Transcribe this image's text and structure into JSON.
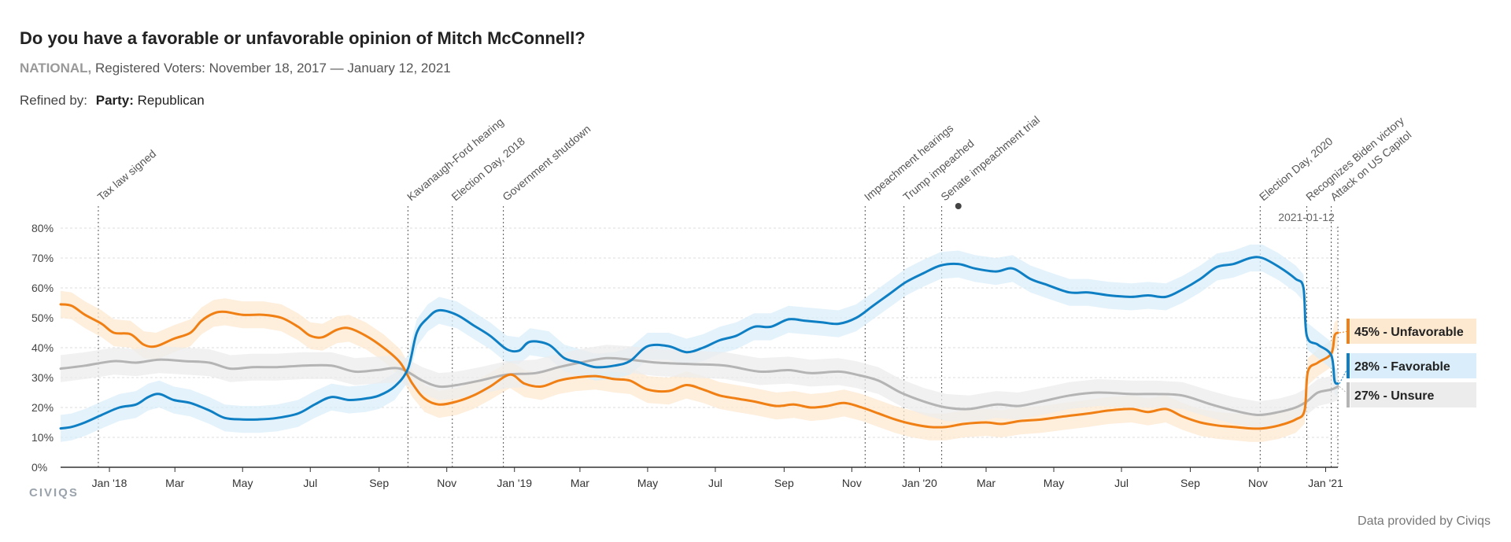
{
  "header": {
    "title": "Do you have a favorable or unfavorable opinion of Mitch McConnell?",
    "scope": "NATIONAL,",
    "subtitle": "Registered Voters: November 18, 2017 — January 12, 2021",
    "refined_label": "Refined by:",
    "refined_key": "Party:",
    "refined_value": "Republican"
  },
  "footer": {
    "credit": "Data provided by Civiqs",
    "logo": "CIVIQS"
  },
  "chart_data": {
    "type": "line",
    "ylim": [
      0,
      80
    ],
    "yticks": [
      0,
      10,
      20,
      30,
      40,
      50,
      60,
      70,
      80
    ],
    "ytick_labels": [
      "0%",
      "10%",
      "20%",
      "30%",
      "40%",
      "50%",
      "60%",
      "70%",
      "80%"
    ],
    "x_range": [
      "2017-11-18",
      "2021-01-12"
    ],
    "x_ticks": [
      {
        "date": "2018-01-01",
        "label": "Jan '18"
      },
      {
        "date": "2018-03-01",
        "label": "Mar"
      },
      {
        "date": "2018-05-01",
        "label": "May"
      },
      {
        "date": "2018-07-01",
        "label": "Jul"
      },
      {
        "date": "2018-09-01",
        "label": "Sep"
      },
      {
        "date": "2018-11-01",
        "label": "Nov"
      },
      {
        "date": "2019-01-01",
        "label": "Jan '19"
      },
      {
        "date": "2019-03-01",
        "label": "Mar"
      },
      {
        "date": "2019-05-01",
        "label": "May"
      },
      {
        "date": "2019-07-01",
        "label": "Jul"
      },
      {
        "date": "2019-09-01",
        "label": "Sep"
      },
      {
        "date": "2019-11-01",
        "label": "Nov"
      },
      {
        "date": "2020-01-01",
        "label": "Jan '20"
      },
      {
        "date": "2020-03-01",
        "label": "Mar"
      },
      {
        "date": "2020-05-01",
        "label": "May"
      },
      {
        "date": "2020-07-01",
        "label": "Jul"
      },
      {
        "date": "2020-09-01",
        "label": "Sep"
      },
      {
        "date": "2020-11-01",
        "label": "Nov"
      },
      {
        "date": "2021-01-01",
        "label": "Jan '21"
      }
    ],
    "events": [
      {
        "date": "2017-12-22",
        "label": "Tax law signed"
      },
      {
        "date": "2018-09-27",
        "label": "Kavanaugh-Ford hearing"
      },
      {
        "date": "2018-11-06",
        "label": "Election Day, 2018"
      },
      {
        "date": "2018-12-22",
        "label": "Government shutdown"
      },
      {
        "date": "2019-11-13",
        "label": "Impeachment hearings"
      },
      {
        "date": "2019-12-18",
        "label": "Trump impeached"
      },
      {
        "date": "2020-01-21",
        "label": "Senate impeachment trial"
      },
      {
        "date": "2020-11-03",
        "label": "Election Day, 2020"
      },
      {
        "date": "2020-12-15",
        "label": "Recognizes Biden victory"
      },
      {
        "date": "2021-01-06",
        "label": "Attack on US Capitol"
      }
    ],
    "marker": {
      "date": "2020-02-05"
    },
    "end_date_label": "2021-01-12",
    "series": [
      {
        "name": "Unfavorable",
        "color": "#f07f14",
        "band": "#fde8d0",
        "end_label": "45% - Unfavorable",
        "points": [
          [
            "2017-11-18",
            54.5
          ],
          [
            "2017-11-28",
            54
          ],
          [
            "2017-12-10",
            51
          ],
          [
            "2017-12-25",
            48
          ],
          [
            "2018-01-05",
            45
          ],
          [
            "2018-01-20",
            44.5
          ],
          [
            "2018-02-01",
            41
          ],
          [
            "2018-02-12",
            40.5
          ],
          [
            "2018-02-28",
            43
          ],
          [
            "2018-03-15",
            45
          ],
          [
            "2018-03-25",
            49
          ],
          [
            "2018-04-05",
            51.5
          ],
          [
            "2018-04-15",
            52
          ],
          [
            "2018-05-01",
            51
          ],
          [
            "2018-05-20",
            51
          ],
          [
            "2018-06-05",
            50
          ],
          [
            "2018-06-20",
            47
          ],
          [
            "2018-07-01",
            44
          ],
          [
            "2018-07-12",
            43.5
          ],
          [
            "2018-07-25",
            46
          ],
          [
            "2018-08-05",
            46.5
          ],
          [
            "2018-08-20",
            44
          ],
          [
            "2018-09-05",
            40
          ],
          [
            "2018-09-20",
            35
          ],
          [
            "2018-10-01",
            28
          ],
          [
            "2018-10-12",
            23
          ],
          [
            "2018-10-25",
            21
          ],
          [
            "2018-11-10",
            22
          ],
          [
            "2018-11-25",
            24
          ],
          [
            "2018-12-10",
            27
          ],
          [
            "2018-12-28",
            31
          ],
          [
            "2019-01-10",
            28
          ],
          [
            "2019-01-25",
            27
          ],
          [
            "2019-02-10",
            29
          ],
          [
            "2019-02-25",
            30
          ],
          [
            "2019-03-15",
            30.5
          ],
          [
            "2019-04-01",
            29.5
          ],
          [
            "2019-04-15",
            29
          ],
          [
            "2019-05-01",
            26
          ],
          [
            "2019-05-20",
            25.5
          ],
          [
            "2019-06-05",
            27.5
          ],
          [
            "2019-06-20",
            26
          ],
          [
            "2019-07-05",
            24
          ],
          [
            "2019-07-20",
            23
          ],
          [
            "2019-08-05",
            22
          ],
          [
            "2019-08-25",
            20.5
          ],
          [
            "2019-09-10",
            21
          ],
          [
            "2019-09-25",
            20
          ],
          [
            "2019-10-10",
            20.5
          ],
          [
            "2019-10-25",
            21.5
          ],
          [
            "2019-11-10",
            20
          ],
          [
            "2019-11-25",
            18
          ],
          [
            "2019-12-10",
            16
          ],
          [
            "2019-12-25",
            14.5
          ],
          [
            "2020-01-10",
            13.5
          ],
          [
            "2020-01-25",
            13.5
          ],
          [
            "2020-02-10",
            14.5
          ],
          [
            "2020-03-01",
            15
          ],
          [
            "2020-03-15",
            14.5
          ],
          [
            "2020-04-01",
            15.5
          ],
          [
            "2020-04-20",
            16
          ],
          [
            "2020-05-10",
            17
          ],
          [
            "2020-06-01",
            18
          ],
          [
            "2020-06-20",
            19
          ],
          [
            "2020-07-10",
            19.5
          ],
          [
            "2020-07-25",
            18.5
          ],
          [
            "2020-08-10",
            19.5
          ],
          [
            "2020-08-25",
            17
          ],
          [
            "2020-09-10",
            15
          ],
          [
            "2020-09-25",
            14
          ],
          [
            "2020-10-10",
            13.5
          ],
          [
            "2020-10-25",
            13
          ],
          [
            "2020-11-05",
            13
          ],
          [
            "2020-11-20",
            14
          ],
          [
            "2020-12-05",
            16
          ],
          [
            "2020-12-13",
            19
          ],
          [
            "2020-12-16",
            32
          ],
          [
            "2020-12-25",
            35
          ],
          [
            "2021-01-06",
            38
          ],
          [
            "2021-01-09",
            44
          ],
          [
            "2021-01-12",
            45
          ]
        ]
      },
      {
        "name": "Favorable",
        "color": "#0f7fc4",
        "band": "#d9eefa",
        "end_label": "28% - Favorable",
        "points": [
          [
            "2017-11-18",
            13
          ],
          [
            "2017-11-28",
            13.5
          ],
          [
            "2017-12-10",
            15
          ],
          [
            "2017-12-25",
            17.5
          ],
          [
            "2018-01-10",
            20
          ],
          [
            "2018-01-25",
            21
          ],
          [
            "2018-02-05",
            23.5
          ],
          [
            "2018-02-15",
            24.5
          ],
          [
            "2018-02-28",
            22.5
          ],
          [
            "2018-03-15",
            21.5
          ],
          [
            "2018-04-01",
            19
          ],
          [
            "2018-04-15",
            16.5
          ],
          [
            "2018-05-01",
            16
          ],
          [
            "2018-05-15",
            16
          ],
          [
            "2018-06-01",
            16.5
          ],
          [
            "2018-06-20",
            18
          ],
          [
            "2018-07-05",
            21
          ],
          [
            "2018-07-20",
            23.5
          ],
          [
            "2018-08-05",
            22.5
          ],
          [
            "2018-08-20",
            23
          ],
          [
            "2018-09-01",
            24
          ],
          [
            "2018-09-15",
            27
          ],
          [
            "2018-09-27",
            33
          ],
          [
            "2018-10-05",
            45
          ],
          [
            "2018-10-15",
            50
          ],
          [
            "2018-10-25",
            52.5
          ],
          [
            "2018-11-10",
            51
          ],
          [
            "2018-11-25",
            47.5
          ],
          [
            "2018-12-10",
            44
          ],
          [
            "2018-12-25",
            39.5
          ],
          [
            "2019-01-05",
            39
          ],
          [
            "2019-01-15",
            42
          ],
          [
            "2019-02-01",
            41
          ],
          [
            "2019-02-15",
            36.5
          ],
          [
            "2019-03-01",
            35
          ],
          [
            "2019-03-15",
            33.5
          ],
          [
            "2019-04-01",
            34
          ],
          [
            "2019-04-15",
            35.5
          ],
          [
            "2019-05-01",
            40.5
          ],
          [
            "2019-05-20",
            40.5
          ],
          [
            "2019-06-05",
            38.5
          ],
          [
            "2019-06-20",
            40
          ],
          [
            "2019-07-05",
            42.5
          ],
          [
            "2019-07-20",
            44
          ],
          [
            "2019-08-05",
            47
          ],
          [
            "2019-08-20",
            47
          ],
          [
            "2019-09-05",
            49.5
          ],
          [
            "2019-09-20",
            49
          ],
          [
            "2019-10-05",
            48.5
          ],
          [
            "2019-10-20",
            48
          ],
          [
            "2019-11-05",
            50
          ],
          [
            "2019-11-20",
            54
          ],
          [
            "2019-12-05",
            58
          ],
          [
            "2019-12-20",
            62
          ],
          [
            "2020-01-05",
            65
          ],
          [
            "2020-01-20",
            67.5
          ],
          [
            "2020-02-05",
            68
          ],
          [
            "2020-02-20",
            66.5
          ],
          [
            "2020-03-10",
            65.5
          ],
          [
            "2020-03-25",
            66.5
          ],
          [
            "2020-04-10",
            63
          ],
          [
            "2020-04-25",
            61
          ],
          [
            "2020-05-15",
            58.5
          ],
          [
            "2020-06-01",
            58.5
          ],
          [
            "2020-06-20",
            57.5
          ],
          [
            "2020-07-10",
            57
          ],
          [
            "2020-07-25",
            57.5
          ],
          [
            "2020-08-10",
            57
          ],
          [
            "2020-08-25",
            59.5
          ],
          [
            "2020-09-10",
            63
          ],
          [
            "2020-09-25",
            67
          ],
          [
            "2020-10-10",
            68
          ],
          [
            "2020-10-25",
            70
          ],
          [
            "2020-11-05",
            70
          ],
          [
            "2020-11-20",
            67
          ],
          [
            "2020-12-05",
            63
          ],
          [
            "2020-12-12",
            60
          ],
          [
            "2020-12-15",
            44
          ],
          [
            "2020-12-25",
            41
          ],
          [
            "2021-01-06",
            37.5
          ],
          [
            "2021-01-09",
            29
          ],
          [
            "2021-01-12",
            28
          ]
        ]
      },
      {
        "name": "Unsure",
        "color": "#b4b4b4",
        "band": "#ececec",
        "end_label": "27% - Unsure",
        "points": [
          [
            "2017-11-18",
            33
          ],
          [
            "2017-12-10",
            34
          ],
          [
            "2018-01-05",
            35.5
          ],
          [
            "2018-01-25",
            35
          ],
          [
            "2018-02-15",
            36
          ],
          [
            "2018-03-10",
            35.5
          ],
          [
            "2018-04-01",
            35
          ],
          [
            "2018-04-20",
            33
          ],
          [
            "2018-05-10",
            33.5
          ],
          [
            "2018-06-01",
            33.5
          ],
          [
            "2018-06-25",
            34
          ],
          [
            "2018-07-20",
            34
          ],
          [
            "2018-08-10",
            32
          ],
          [
            "2018-08-30",
            32.5
          ],
          [
            "2018-09-20",
            33
          ],
          [
            "2018-10-10",
            29
          ],
          [
            "2018-10-25",
            27
          ],
          [
            "2018-11-10",
            27.5
          ],
          [
            "2018-12-01",
            29
          ],
          [
            "2018-12-25",
            31
          ],
          [
            "2019-01-20",
            31.5
          ],
          [
            "2019-02-10",
            33.5
          ],
          [
            "2019-03-01",
            35
          ],
          [
            "2019-03-25",
            36.5
          ],
          [
            "2019-04-15",
            36
          ],
          [
            "2019-05-10",
            35
          ],
          [
            "2019-06-10",
            34.5
          ],
          [
            "2019-07-10",
            34
          ],
          [
            "2019-08-10",
            32
          ],
          [
            "2019-09-05",
            32.5
          ],
          [
            "2019-09-25",
            31.5
          ],
          [
            "2019-10-20",
            32
          ],
          [
            "2019-11-05",
            31
          ],
          [
            "2019-11-25",
            29
          ],
          [
            "2019-12-15",
            25
          ],
          [
            "2020-01-05",
            22
          ],
          [
            "2020-01-25",
            20
          ],
          [
            "2020-02-15",
            19.5
          ],
          [
            "2020-03-10",
            21
          ],
          [
            "2020-03-30",
            20.5
          ],
          [
            "2020-04-20",
            22
          ],
          [
            "2020-05-15",
            24
          ],
          [
            "2020-06-10",
            25
          ],
          [
            "2020-07-10",
            24.5
          ],
          [
            "2020-08-01",
            24.5
          ],
          [
            "2020-08-25",
            24
          ],
          [
            "2020-09-20",
            21
          ],
          [
            "2020-10-10",
            19
          ],
          [
            "2020-11-01",
            17.5
          ],
          [
            "2020-11-20",
            18.5
          ],
          [
            "2020-12-05",
            20
          ],
          [
            "2020-12-15",
            22
          ],
          [
            "2020-12-25",
            25
          ],
          [
            "2021-01-06",
            26
          ],
          [
            "2021-01-12",
            27
          ]
        ]
      }
    ]
  }
}
